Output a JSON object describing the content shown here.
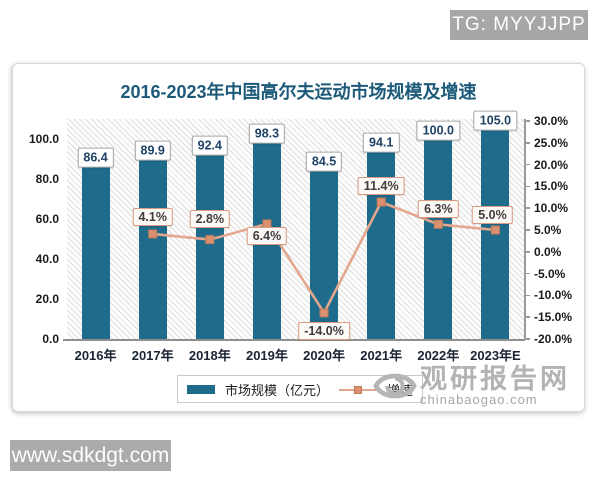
{
  "header": {
    "tg_badge": "TG: MYYJJPP"
  },
  "footer": {
    "site_badge": "www.sdkdgt.com"
  },
  "watermark": {
    "brand": "观研报告网",
    "domain": "chinabaogao.com"
  },
  "legend": {
    "bar_label": "市场规模（亿元）",
    "line_label": "增速"
  },
  "chart_data": {
    "type": "bar+line",
    "title": "2016-2023年中国高尔夫运动市场规模及增速",
    "categories": [
      "2016年",
      "2017年",
      "2018年",
      "2019年",
      "2020年",
      "2021年",
      "2022年",
      "2023年E"
    ],
    "series": [
      {
        "name": "市场规模（亿元）",
        "type": "bar",
        "axis": "left",
        "values": [
          86.4,
          89.9,
          92.4,
          98.3,
          84.5,
          94.1,
          100.0,
          105.0
        ],
        "value_labels": [
          "86.4",
          "89.9",
          "92.4",
          "98.3",
          "84.5",
          "94.1",
          "100.0",
          "105.0"
        ]
      },
      {
        "name": "增速",
        "type": "line",
        "axis": "right",
        "values": [
          null,
          4.1,
          2.8,
          6.4,
          -14.0,
          11.4,
          6.3,
          5.0
        ],
        "value_labels": [
          null,
          "4.1%",
          "2.8%",
          "6.4%",
          "-14.0%",
          "11.4%",
          "6.3%",
          "5.0%"
        ]
      }
    ],
    "left_axis": {
      "min": 0,
      "max": 110,
      "tick_labels": [
        "0.0",
        "20.0",
        "40.0",
        "60.0",
        "80.0",
        "100.0"
      ]
    },
    "right_axis": {
      "min": -20,
      "max": 30,
      "tick_labels": [
        "30.0%",
        "25.0%",
        "20.0%",
        "15.0%",
        "10.0%",
        "5.0%",
        "0.0%",
        "-5.0%",
        "-10.0%",
        "-15.0%",
        "-20.0%"
      ]
    },
    "legend_position": "bottom",
    "grid": false,
    "colors": {
      "bar": "#1f6b8c",
      "line": "#e4a78d",
      "marker": "#db9171",
      "title": "#1d5a7a"
    }
  }
}
